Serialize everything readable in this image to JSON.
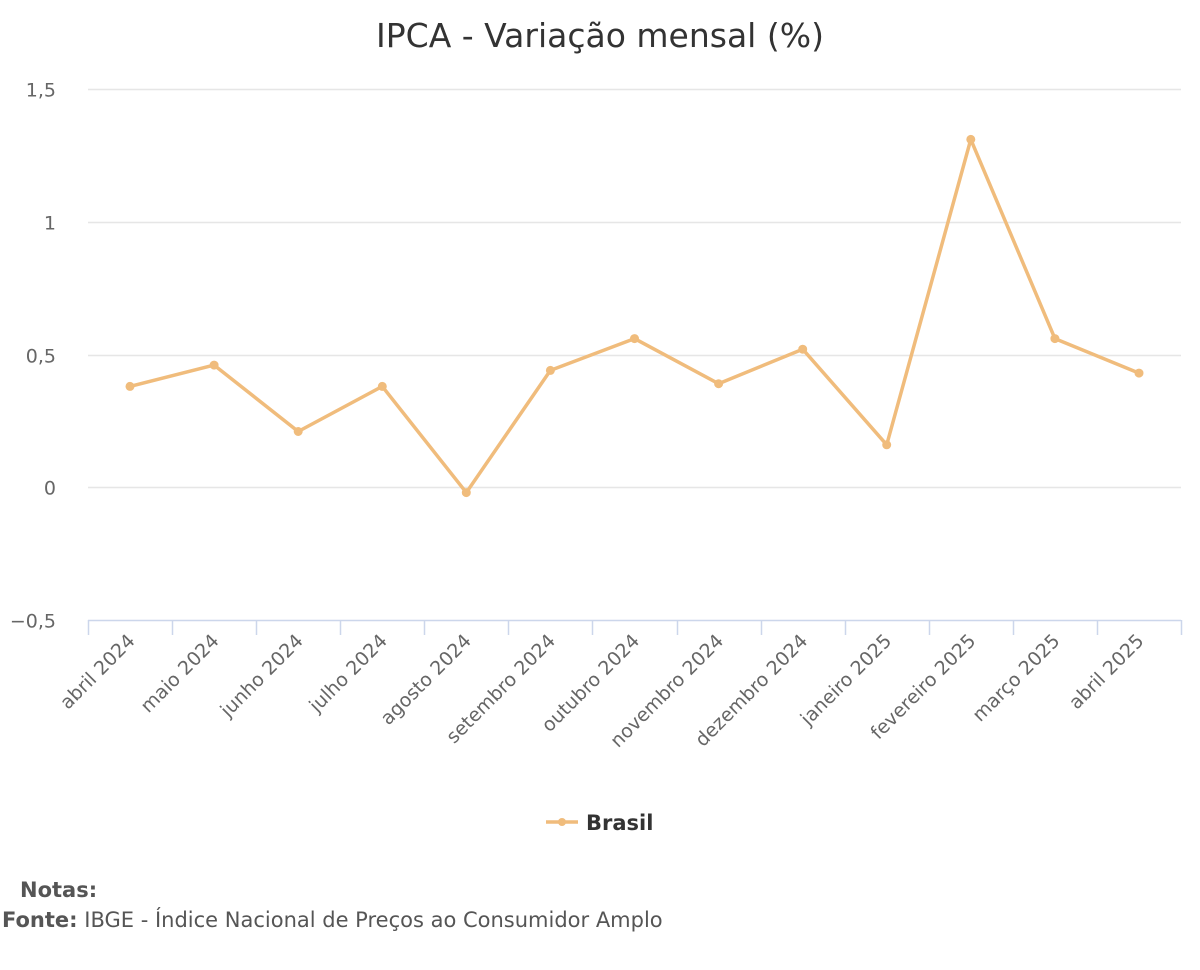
{
  "chart_data": {
    "type": "line",
    "title": "IPCA - Variação mensal (%)",
    "categories": [
      "abril 2024",
      "maio 2024",
      "junho 2024",
      "julho 2024",
      "agosto 2024",
      "setembro 2024",
      "outubro 2024",
      "novembro 2024",
      "dezembro 2024",
      "janeiro 2025",
      "fevereiro 2025",
      "março 2025",
      "abril 2025"
    ],
    "series": [
      {
        "name": "Brasil",
        "color": "#f0bc7c",
        "values": [
          0.38,
          0.46,
          0.21,
          0.38,
          -0.02,
          0.44,
          0.56,
          0.39,
          0.52,
          0.16,
          1.31,
          0.56,
          0.43
        ]
      }
    ],
    "ylim": [
      -0.5,
      1.5
    ],
    "yticks": [
      -0.5,
      0,
      0.5,
      1,
      1.5
    ],
    "ytick_labels": [
      "−0,5",
      "0",
      "0,5",
      "1",
      "1,5"
    ],
    "grid": true,
    "legend": "bottom-center",
    "xlabel": "",
    "ylabel": ""
  },
  "footer": {
    "notes_label": "Notas:",
    "source_label": "Fonte:",
    "source_text": "IBGE - Índice Nacional de Preços ao Consumidor Amplo"
  }
}
